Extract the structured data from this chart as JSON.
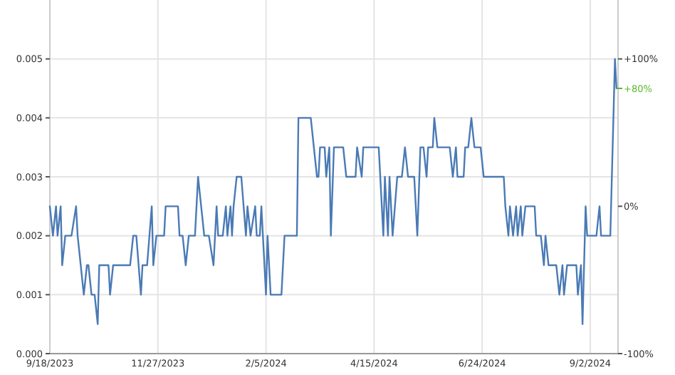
{
  "chart_data": {
    "type": "line",
    "x": [
      "2023-09-18",
      "2023-09-20",
      "2023-09-22",
      "2023-09-23",
      "2023-09-25",
      "2023-09-26",
      "2023-09-28",
      "2023-10-02",
      "2023-10-05",
      "2023-10-06",
      "2023-10-10",
      "2023-10-12",
      "2023-10-13",
      "2023-10-15",
      "2023-10-17",
      "2023-10-19",
      "2023-10-20",
      "2023-10-26",
      "2023-10-27",
      "2023-10-29",
      "2023-11-09",
      "2023-11-11",
      "2023-11-13",
      "2023-11-16",
      "2023-11-17",
      "2023-11-20",
      "2023-11-23",
      "2023-11-24",
      "2023-11-26",
      "2023-12-01",
      "2023-12-02",
      "2023-12-10",
      "2023-12-11",
      "2023-12-13",
      "2023-12-15",
      "2023-12-17",
      "2023-12-21",
      "2023-12-23",
      "2023-12-27",
      "2023-12-30",
      "2024-01-02",
      "2024-01-04",
      "2024-01-05",
      "2024-01-08",
      "2024-01-10",
      "2024-01-11",
      "2024-01-13",
      "2024-01-14",
      "2024-01-15",
      "2024-01-17",
      "2024-01-20",
      "2024-01-23",
      "2024-01-24",
      "2024-01-26",
      "2024-01-29",
      "2024-01-30",
      "2024-02-01",
      "2024-02-02",
      "2024-02-05",
      "2024-02-06",
      "2024-02-08",
      "2024-02-15",
      "2024-02-17",
      "2024-02-25",
      "2024-02-26",
      "2024-03-05",
      "2024-03-09",
      "2024-03-10",
      "2024-03-11",
      "2024-03-14",
      "2024-03-15",
      "2024-03-17",
      "2024-03-18",
      "2024-03-20",
      "2024-03-26",
      "2024-03-28",
      "2024-04-03",
      "2024-04-04",
      "2024-04-07",
      "2024-04-08",
      "2024-04-18",
      "2024-04-21",
      "2024-04-22",
      "2024-04-24",
      "2024-04-25",
      "2024-04-27",
      "2024-04-30",
      "2024-05-03",
      "2024-05-05",
      "2024-05-07",
      "2024-05-11",
      "2024-05-13",
      "2024-05-15",
      "2024-05-17",
      "2024-05-19",
      "2024-05-20",
      "2024-05-23",
      "2024-05-24",
      "2024-05-26",
      "2024-06-03",
      "2024-06-05",
      "2024-06-07",
      "2024-06-08",
      "2024-06-12",
      "2024-06-13",
      "2024-06-15",
      "2024-06-17",
      "2024-06-19",
      "2024-06-23",
      "2024-06-25",
      "2024-07-08",
      "2024-07-09",
      "2024-07-11",
      "2024-07-12",
      "2024-07-14",
      "2024-07-16",
      "2024-07-17",
      "2024-07-19",
      "2024-07-20",
      "2024-07-22",
      "2024-07-28",
      "2024-07-29",
      "2024-08-01",
      "2024-08-03",
      "2024-08-04",
      "2024-08-06",
      "2024-08-11",
      "2024-08-13",
      "2024-08-15",
      "2024-08-16",
      "2024-08-18",
      "2024-08-24",
      "2024-08-25",
      "2024-08-27",
      "2024-08-28",
      "2024-08-30",
      "2024-08-31",
      "2024-09-06",
      "2024-09-08",
      "2024-09-09",
      "2024-09-15",
      "2024-09-18",
      "2024-09-19"
    ],
    "series": [
      {
        "color": "#4a7ab5",
        "values": [
          0.0025,
          0.002,
          0.0025,
          0.002,
          0.0025,
          0.0015,
          0.002,
          0.002,
          0.0025,
          0.002,
          0.001,
          0.0015,
          0.0015,
          0.001,
          0.001,
          0.0005,
          0.0015,
          0.0015,
          0.001,
          0.0015,
          0.0015,
          0.002,
          0.002,
          0.001,
          0.0015,
          0.0015,
          0.0025,
          0.0015,
          0.002,
          0.002,
          0.0025,
          0.0025,
          0.002,
          0.002,
          0.0015,
          0.002,
          0.002,
          0.003,
          0.002,
          0.002,
          0.0015,
          0.0025,
          0.002,
          0.002,
          0.0025,
          0.002,
          0.0025,
          0.002,
          0.0025,
          0.003,
          0.003,
          0.002,
          0.0025,
          0.002,
          0.0025,
          0.002,
          0.002,
          0.0025,
          0.001,
          0.002,
          0.001,
          0.001,
          0.002,
          0.002,
          0.004,
          0.004,
          0.003,
          0.003,
          0.0035,
          0.0035,
          0.003,
          0.0035,
          0.002,
          0.0035,
          0.0035,
          0.003,
          0.003,
          0.0035,
          0.003,
          0.0035,
          0.0035,
          0.002,
          0.003,
          0.002,
          0.003,
          0.002,
          0.003,
          0.003,
          0.0035,
          0.003,
          0.003,
          0.002,
          0.0035,
          0.0035,
          0.003,
          0.0035,
          0.0035,
          0.004,
          0.0035,
          0.0035,
          0.003,
          0.0035,
          0.003,
          0.003,
          0.0035,
          0.0035,
          0.004,
          0.0035,
          0.0035,
          0.003,
          0.003,
          0.0025,
          0.002,
          0.0025,
          0.002,
          0.0025,
          0.002,
          0.0025,
          0.002,
          0.0025,
          0.0025,
          0.002,
          0.002,
          0.0015,
          0.002,
          0.0015,
          0.0015,
          0.001,
          0.0015,
          0.001,
          0.0015,
          0.0015,
          0.001,
          0.0015,
          0.0005,
          0.0025,
          0.002,
          0.002,
          0.0025,
          0.002,
          0.002,
          0.005,
          0.0045
        ]
      }
    ],
    "xlim": [
      "2023-09-18",
      "2024-09-20"
    ],
    "xticks": [
      {
        "value": "2023-09-18",
        "label": "9/18/2023"
      },
      {
        "value": "2023-11-27",
        "label": "11/27/2023"
      },
      {
        "value": "2024-02-05",
        "label": "2/5/2024"
      },
      {
        "value": "2024-04-15",
        "label": "4/15/2024"
      },
      {
        "value": "2024-06-24",
        "label": "6/24/2024"
      },
      {
        "value": "2024-09-02",
        "label": "9/2/2024"
      }
    ],
    "ylim": [
      0,
      0.006
    ],
    "yticks": [
      {
        "value": 0,
        "label": "0.000"
      },
      {
        "value": 0.001,
        "label": "0.001"
      },
      {
        "value": 0.002,
        "label": "0.002"
      },
      {
        "value": 0.003,
        "label": "0.003"
      },
      {
        "value": 0.004,
        "label": "0.004"
      },
      {
        "value": 0.005,
        "label": "0.005"
      }
    ],
    "y2lim": [
      -100,
      140
    ],
    "y2ticks": [
      {
        "value": 100,
        "label": "+100%"
      },
      {
        "value": 0,
        "label": "0%"
      },
      {
        "value": -100,
        "label": "-100%"
      }
    ],
    "annotations": [
      {
        "text": "+80%",
        "x": "2024-09-19",
        "y": 0.0045
      }
    ],
    "grid": true
  }
}
